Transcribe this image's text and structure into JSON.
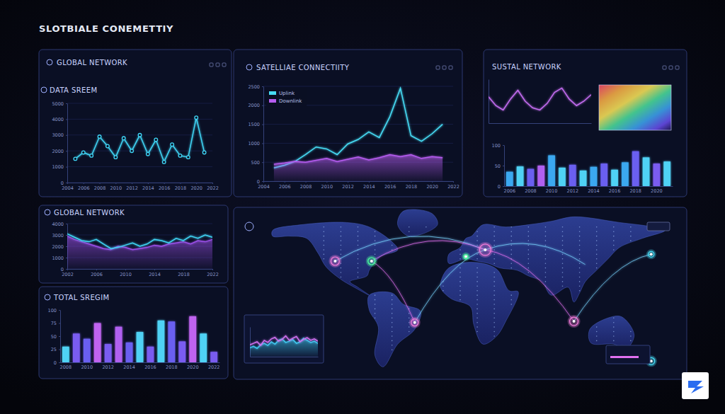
{
  "header": {
    "title": "SLOTBIALE CONEMETTIY"
  },
  "chart_data": [
    {
      "type": "line",
      "title": "GLOBAL NETWORK",
      "subtitle": "DATA SREEM",
      "x": [
        2005,
        2006,
        2007,
        2008,
        2009,
        2010,
        2011,
        2012,
        2013,
        2014,
        2015,
        2016,
        2017,
        2018,
        2019,
        2020,
        2021
      ],
      "xlim": [
        2004,
        2022
      ],
      "xticks": [
        2004,
        2006,
        2008,
        2010,
        2012,
        2014,
        2016,
        2018,
        2020,
        2022
      ],
      "ylim": [
        0,
        5000
      ],
      "yticks": [
        0,
        1000,
        2000,
        3000,
        4000,
        5000
      ],
      "grid": true,
      "series": [
        {
          "type": "line",
          "color": "#3fd4f4",
          "marker": "circle",
          "values": [
            1500,
            1900,
            1700,
            2900,
            2300,
            1600,
            2800,
            2000,
            3000,
            1800,
            2700,
            1300,
            2400,
            1700,
            1600,
            4100,
            1900
          ]
        }
      ]
    },
    {
      "type": "line",
      "title": "SATELLIAE CONNECTIITY",
      "x": [
        2005,
        2006,
        2007,
        2008,
        2009,
        2010,
        2011,
        2012,
        2013,
        2014,
        2015,
        2016,
        2017,
        2018,
        2019,
        2020,
        2021
      ],
      "xlim": [
        2004,
        2022
      ],
      "xticks": [
        2004,
        2006,
        2008,
        2010,
        2012,
        2014,
        2016,
        2018,
        2020,
        2022
      ],
      "ylim": [
        0,
        2500
      ],
      "yticks": [
        0,
        500,
        1000,
        1500,
        2000,
        2500
      ],
      "grid": true,
      "legend": "upper left",
      "series": [
        {
          "name": "Uplink",
          "type": "line",
          "color": "#46dcf5",
          "values": [
            350,
            420,
            520,
            700,
            900,
            850,
            700,
            980,
            1100,
            1300,
            1150,
            1700,
            2450,
            1200,
            1050,
            1250,
            1500
          ]
        },
        {
          "name": "Downlink",
          "type": "area",
          "color": "#b65cf0",
          "values": [
            450,
            480,
            520,
            500,
            550,
            600,
            520,
            580,
            640,
            560,
            620,
            700,
            650,
            700,
            600,
            650,
            620
          ]
        }
      ]
    },
    {
      "type": "bar",
      "title": "SUSTAL NETWORK",
      "categories": [
        "2006",
        null,
        "2008",
        null,
        "2010",
        null,
        "2012",
        null,
        "2014",
        null,
        "2016",
        null,
        "2018",
        null,
        "2020",
        null
      ],
      "values": [
        35,
        48,
        42,
        50,
        75,
        45,
        52,
        38,
        47,
        55,
        40,
        58,
        85,
        70,
        55,
        60
      ],
      "colors": [
        "#3aa8f0",
        "#4fd2f5",
        "#6a5ef0",
        "#b060f0",
        "#3aa8f0",
        "#4fd2f5",
        "#6a5ef0",
        "#4fd2f5",
        "#3aa8f0",
        "#6a5ef0",
        "#4fd2f5",
        "#3aa8f0",
        "#6a5ef0",
        "#4fd2f5",
        "#7a5cf0",
        "#4fd2f5"
      ],
      "ylim": [
        0,
        100
      ],
      "yticks": [
        0,
        50,
        100
      ]
    },
    {
      "type": "line",
      "x": [
        0,
        1,
        2,
        3,
        4,
        5,
        6,
        7,
        8,
        9,
        10,
        11,
        12,
        13,
        14
      ],
      "xlim": [
        0,
        14
      ],
      "ylim": [
        0,
        100
      ],
      "tick_labels": false,
      "series": [
        {
          "type": "line",
          "color": "#c46cf0",
          "values": [
            60,
            40,
            30,
            55,
            75,
            50,
            35,
            30,
            45,
            70,
            80,
            55,
            40,
            50,
            65
          ]
        }
      ]
    },
    {
      "type": "line",
      "title": "GLOBAL NETWORK",
      "x": [
        2002,
        2003,
        2004,
        2005,
        2006,
        2007,
        2008,
        2009,
        2010,
        2011,
        2012,
        2013,
        2014,
        2015,
        2016,
        2017,
        2018,
        2019,
        2020,
        2021,
        2022
      ],
      "xlim": [
        2002,
        2022
      ],
      "xticks": [
        2002,
        2006,
        2010,
        2014,
        2018,
        2022
      ],
      "ylim": [
        0,
        4000
      ],
      "yticks": [
        0,
        1000,
        2000,
        3000,
        4000
      ],
      "grid": true,
      "series": [
        {
          "type": "area",
          "color": "#9b4fe8",
          "values": [
            2900,
            2600,
            2400,
            2200,
            2000,
            1800,
            1700,
            2000,
            1900,
            1700,
            1800,
            1900,
            2100,
            2000,
            2200,
            2300,
            2400,
            2200,
            2500,
            2400,
            2600
          ]
        },
        {
          "type": "line",
          "color": "#3fd4f4",
          "values": [
            3100,
            2800,
            2500,
            2400,
            2600,
            2200,
            1800,
            1900,
            2100,
            2300,
            2000,
            2200,
            2600,
            2500,
            2300,
            2700,
            2500,
            2900,
            2700,
            3000,
            2800
          ]
        }
      ]
    },
    {
      "type": "bar",
      "title": "TOTAL SREGIM",
      "categories": [
        "2008",
        null,
        "2010",
        null,
        "2012",
        null,
        "2014",
        null,
        "2016",
        null,
        "2018",
        null,
        "2020",
        null,
        "2022"
      ],
      "values": [
        30,
        55,
        45,
        75,
        35,
        68,
        38,
        58,
        30,
        80,
        78,
        40,
        88,
        55,
        20
      ],
      "colors": [
        "#4fd2f5",
        "#7a5cf0",
        "#6a5ef0",
        "#c064f0",
        "#7a5cf0",
        "#b060f0",
        "#6a5ef0",
        "#4fd2f5",
        "#7a5cf0",
        "#4fd2f5",
        "#6a5ef0",
        "#7a5cf0",
        "#c064f0",
        "#4fd2f5",
        "#7a5cf0"
      ],
      "ylim": [
        0,
        100
      ],
      "yticks": [
        0,
        25,
        50,
        75,
        100
      ]
    },
    {
      "type": "line",
      "x": [
        0,
        1,
        2,
        3,
        4,
        5,
        6,
        7,
        8,
        9,
        10,
        11,
        12,
        13,
        14,
        15,
        16,
        17,
        18,
        19
      ],
      "xlim": [
        0,
        19
      ],
      "ylim": [
        0,
        100
      ],
      "tick_labels": false,
      "series": [
        {
          "type": "area",
          "color": "#3fc8f0",
          "values": [
            30,
            35,
            28,
            40,
            45,
            38,
            50,
            42,
            55,
            60,
            48,
            52,
            58,
            45,
            50,
            62,
            55,
            48,
            52,
            45
          ]
        },
        {
          "type": "line",
          "color": "#d070f0",
          "values": [
            40,
            45,
            50,
            38,
            55,
            48,
            60,
            65,
            52,
            58,
            70,
            55,
            62,
            68,
            50,
            58,
            64,
            55,
            60,
            52
          ]
        }
      ]
    }
  ]
}
